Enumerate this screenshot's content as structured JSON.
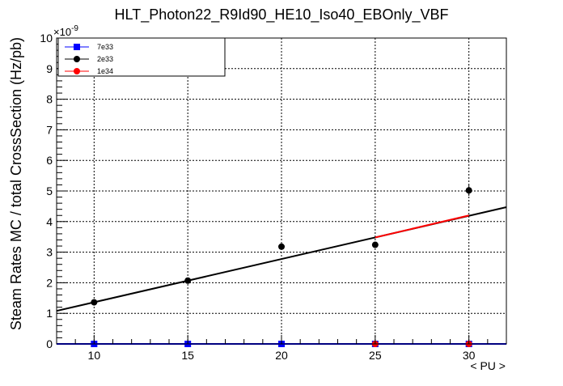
{
  "chart_data": {
    "type": "line",
    "title": "HLT_Photon22_R9Id90_HE10_Iso40_EBOnly_VBF",
    "xlabel": "< PU >",
    "ylabel": "Steam Rates MC / total CrossSection (Hz/pb)",
    "y_exponent_label": "×10",
    "y_exponent_power": "-9",
    "xlim": [
      8,
      32
    ],
    "ylim": [
      0,
      10
    ],
    "x_ticks": [
      10,
      15,
      20,
      25,
      30
    ],
    "y_ticks": [
      0,
      1,
      2,
      3,
      4,
      5,
      6,
      7,
      8,
      9,
      10
    ],
    "grid": true,
    "legend_position": "top-left",
    "series": [
      {
        "name": "7e33",
        "color": "#0000ff",
        "marker": "square",
        "x": [
          10,
          15,
          20,
          25,
          30
        ],
        "y": [
          0,
          0,
          0,
          0,
          0
        ],
        "yerr": [
          0,
          0,
          0,
          0,
          0
        ],
        "fit": {
          "x": [
            8,
            32
          ],
          "y": [
            0,
            0
          ]
        }
      },
      {
        "name": "2e33",
        "color": "#000000",
        "marker": "circle",
        "x": [
          10,
          15,
          20,
          25,
          30
        ],
        "y": [
          1.36,
          2.07,
          3.18,
          3.24,
          5.02
        ],
        "yerr": [
          0.07,
          0.07,
          0.1,
          0.07,
          0.18
        ],
        "fit": {
          "x": [
            8,
            32
          ],
          "y": [
            1.08,
            4.47
          ]
        }
      },
      {
        "name": "1e34",
        "color": "#ff0000",
        "marker": "circle",
        "x": [
          25,
          30
        ],
        "y": [
          0,
          0
        ],
        "yerr": [
          0,
          0
        ],
        "fit": {
          "x": [
            25,
            30
          ],
          "y": [
            3.48,
            4.2
          ]
        }
      }
    ]
  }
}
